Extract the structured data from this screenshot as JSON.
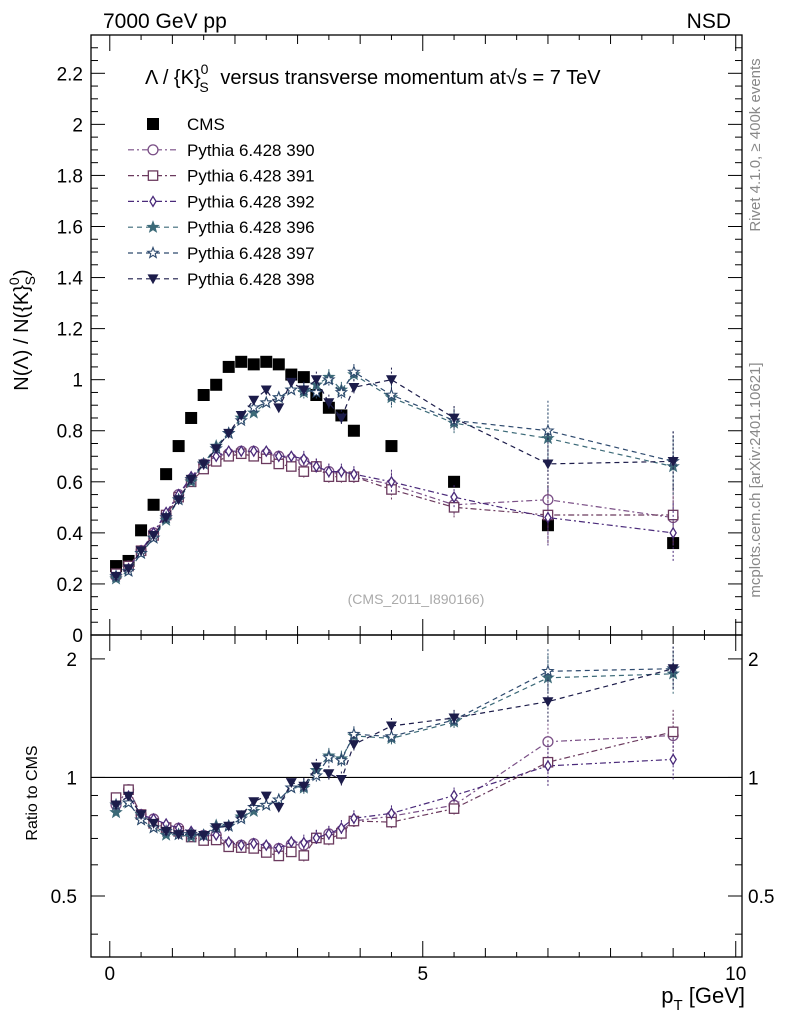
{
  "header": {
    "left": "7000 GeV pp",
    "right": "NSD"
  },
  "side_labels": {
    "rivet": "Rivet 4.1.0, ≥ 400k events",
    "mcplots": "mcplots.cern.ch [arXiv:2401.10621]"
  },
  "colors": {
    "cms": "#000000",
    "p390": "#7a4f86",
    "p391": "#6b3a5e",
    "p392": "#4a2a7a",
    "p396": "#3c6a78",
    "p397": "#2e4a6e",
    "p398": "#1c1c4a"
  },
  "chart_data": [
    {
      "type": "scatter",
      "title": "Λ / {K}",
      "title_sup": "0",
      "title_sub": "S",
      "title_tail": "versus transverse momentum at",
      "title_sqrt": "s",
      "title_end": "= 7 TeV",
      "ylabel_part1": "N(Λ)  /  N({K}",
      "ylabel_sup": "0",
      "ylabel_sub": "S",
      "ylabel_part2": ")",
      "watermark": "(CMS_2011_I890166)",
      "xlim": [
        -0.3,
        10.1
      ],
      "ylim": [
        0,
        2.35
      ],
      "yticks": [
        "0",
        "0.2",
        "0.4",
        "0.6",
        "0.8",
        "1",
        "1.2",
        "1.4",
        "1.6",
        "1.8",
        "2",
        "2.2"
      ],
      "series": [
        {
          "name": "CMS",
          "marker": "square-filled",
          "color": "#000000",
          "style": "none",
          "x": [
            0.1,
            0.3,
            0.5,
            0.7,
            0.9,
            1.1,
            1.3,
            1.5,
            1.7,
            1.9,
            2.1,
            2.3,
            2.5,
            2.7,
            2.9,
            3.1,
            3.3,
            3.5,
            3.7,
            3.9,
            4.5,
            5.5,
            7.0,
            9.0
          ],
          "y": [
            0.27,
            0.29,
            0.41,
            0.51,
            0.63,
            0.74,
            0.85,
            0.94,
            0.98,
            1.05,
            1.07,
            1.06,
            1.07,
            1.06,
            1.02,
            1.01,
            0.94,
            0.89,
            0.86,
            0.8,
            0.74,
            0.6,
            0.43,
            0.36
          ]
        },
        {
          "name": "Pythia 6.428 390",
          "marker": "circle-open",
          "color": "#7a4f86",
          "style": "dashdot",
          "x": [
            0.1,
            0.3,
            0.5,
            0.7,
            0.9,
            1.1,
            1.3,
            1.5,
            1.7,
            1.9,
            2.1,
            2.3,
            2.5,
            2.7,
            2.9,
            3.1,
            3.3,
            3.5,
            3.7,
            3.9,
            4.5,
            5.5,
            7.0,
            9.0
          ],
          "y": [
            0.23,
            0.27,
            0.33,
            0.4,
            0.47,
            0.55,
            0.61,
            0.67,
            0.7,
            0.71,
            0.72,
            0.72,
            0.71,
            0.7,
            0.69,
            0.68,
            0.66,
            0.64,
            0.63,
            0.62,
            0.59,
            0.51,
            0.53,
            0.46
          ]
        },
        {
          "name": "Pythia 6.428 391",
          "marker": "square-open",
          "color": "#6b3a5e",
          "style": "dashdot",
          "x": [
            0.1,
            0.3,
            0.5,
            0.7,
            0.9,
            1.1,
            1.3,
            1.5,
            1.7,
            1.9,
            2.1,
            2.3,
            2.5,
            2.7,
            2.9,
            3.1,
            3.3,
            3.5,
            3.7,
            3.9,
            4.5,
            5.5,
            7.0,
            9.0
          ],
          "y": [
            0.24,
            0.27,
            0.33,
            0.39,
            0.47,
            0.54,
            0.6,
            0.65,
            0.68,
            0.7,
            0.71,
            0.7,
            0.69,
            0.67,
            0.66,
            0.64,
            0.66,
            0.62,
            0.62,
            0.62,
            0.57,
            0.5,
            0.47,
            0.47
          ]
        },
        {
          "name": "Pythia 6.428 392",
          "marker": "diamond-open",
          "color": "#4a2a7a",
          "style": "dashdot",
          "x": [
            0.1,
            0.3,
            0.5,
            0.7,
            0.9,
            1.1,
            1.3,
            1.5,
            1.7,
            1.9,
            2.1,
            2.3,
            2.5,
            2.7,
            2.9,
            3.1,
            3.3,
            3.5,
            3.7,
            3.9,
            4.5,
            5.5,
            7.0,
            9.0
          ],
          "y": [
            0.23,
            0.26,
            0.33,
            0.4,
            0.48,
            0.55,
            0.62,
            0.67,
            0.7,
            0.72,
            0.72,
            0.72,
            0.72,
            0.7,
            0.7,
            0.69,
            0.66,
            0.64,
            0.64,
            0.63,
            0.6,
            0.54,
            0.46,
            0.4
          ]
        },
        {
          "name": "Pythia 6.428 396",
          "marker": "star-filled",
          "color": "#3c6a78",
          "style": "dashed",
          "x": [
            0.1,
            0.3,
            0.5,
            0.7,
            0.9,
            1.1,
            1.3,
            1.5,
            1.7,
            1.9,
            2.1,
            2.3,
            2.5,
            2.7,
            2.9,
            3.1,
            3.3,
            3.5,
            3.7,
            3.9,
            4.5,
            5.5,
            7.0,
            9.0
          ],
          "y": [
            0.22,
            0.25,
            0.32,
            0.38,
            0.45,
            0.53,
            0.6,
            0.67,
            0.74,
            0.79,
            0.85,
            0.87,
            0.91,
            0.93,
            0.96,
            0.95,
            0.98,
            1.01,
            0.96,
            1.02,
            0.93,
            0.83,
            0.77,
            0.66
          ]
        },
        {
          "name": "Pythia 6.428 397",
          "marker": "star-open",
          "color": "#2e4a6e",
          "style": "dashed",
          "x": [
            0.1,
            0.3,
            0.5,
            0.7,
            0.9,
            1.1,
            1.3,
            1.5,
            1.7,
            1.9,
            2.1,
            2.3,
            2.5,
            2.7,
            2.9,
            3.1,
            3.3,
            3.5,
            3.7,
            3.9,
            4.5,
            5.5,
            7.0,
            9.0
          ],
          "y": [
            0.23,
            0.25,
            0.32,
            0.38,
            0.46,
            0.53,
            0.61,
            0.67,
            0.73,
            0.79,
            0.84,
            0.89,
            0.91,
            0.93,
            0.96,
            0.96,
            0.95,
            1.0,
            0.95,
            1.03,
            0.94,
            0.84,
            0.8,
            0.68
          ]
        },
        {
          "name": "Pythia 6.428 398",
          "marker": "triangle-down",
          "color": "#1c1c4a",
          "style": "dashed",
          "x": [
            0.1,
            0.3,
            0.5,
            0.7,
            0.9,
            1.1,
            1.3,
            1.5,
            1.7,
            1.9,
            2.1,
            2.3,
            2.5,
            2.7,
            2.9,
            3.1,
            3.3,
            3.5,
            3.7,
            3.9,
            4.5,
            5.5,
            7.0,
            9.0
          ],
          "y": [
            0.23,
            0.26,
            0.33,
            0.39,
            0.46,
            0.53,
            0.61,
            0.67,
            0.73,
            0.79,
            0.86,
            0.92,
            0.96,
            0.89,
            0.99,
            0.96,
            1.0,
            0.91,
            0.85,
            0.97,
            1.0,
            0.85,
            0.67,
            0.68
          ]
        }
      ]
    },
    {
      "type": "scatter",
      "ylabel": "Ratio to CMS",
      "xlabel": "p",
      "xlabel_sub": "T",
      "xlabel_unit": "[GeV]",
      "xlim": [
        -0.3,
        10.1
      ],
      "ylim": [
        0.35,
        2.3
      ],
      "yscale": "log",
      "yticks": [
        "0.5",
        "1",
        "2"
      ],
      "xticks": [
        "0",
        "5",
        "10"
      ],
      "reference_line": 1
    }
  ]
}
